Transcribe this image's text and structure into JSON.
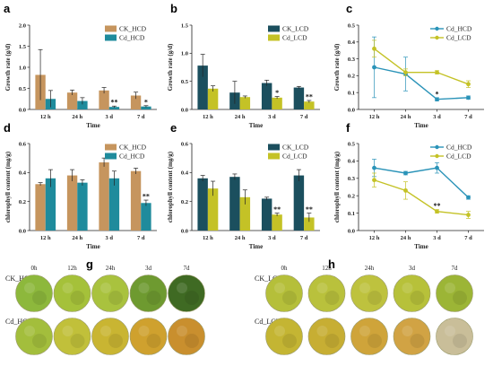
{
  "chart_data": [
    {
      "id": "a",
      "type": "bar",
      "panel_label": "a",
      "categories": [
        "12 h",
        "24 h",
        "3 d",
        "7 d"
      ],
      "xlabel": "Time",
      "ylabel": "Growth rate (g/d)",
      "ylim": [
        0,
        2.0
      ],
      "yticks": [
        "0.0",
        "0.5",
        "1.0",
        "1.5",
        "2.0"
      ],
      "legend_position": "top-right",
      "series": [
        {
          "name": "CK_HCD",
          "color": "#C6955E",
          "values": [
            0.82,
            0.4,
            0.45,
            0.33
          ],
          "errors": [
            0.6,
            0.06,
            0.07,
            0.08
          ]
        },
        {
          "name": "Cd_HCD",
          "color": "#1F8B9C",
          "values": [
            0.25,
            0.2,
            0.06,
            0.07
          ],
          "errors": [
            0.2,
            0.08,
            0.02,
            0.02
          ]
        }
      ],
      "significance": [
        {
          "category": "3 d",
          "series": "Cd_HCD",
          "label": "**"
        },
        {
          "category": "7 d",
          "series": "Cd_HCD",
          "label": "*"
        }
      ]
    },
    {
      "id": "b",
      "type": "bar",
      "panel_label": "b",
      "categories": [
        "12 h",
        "24 h",
        "3 d",
        "7 d"
      ],
      "xlabel": "Time",
      "ylabel": "Growth rate (g/d)",
      "ylim": [
        0,
        1.5
      ],
      "yticks": [
        "0.0",
        "0.5",
        "1.0",
        "1.5"
      ],
      "legend_position": "top-right",
      "series": [
        {
          "name": "CK_LCD",
          "color": "#1B4F5E",
          "values": [
            0.78,
            0.3,
            0.47,
            0.39
          ],
          "errors": [
            0.2,
            0.2,
            0.05,
            0.02
          ]
        },
        {
          "name": "Cd_LCD",
          "color": "#C4C226",
          "values": [
            0.37,
            0.22,
            0.21,
            0.14
          ],
          "errors": [
            0.05,
            0.02,
            0.02,
            0.02
          ]
        }
      ],
      "significance": [
        {
          "category": "3 d",
          "series": "Cd_LCD",
          "label": "*"
        },
        {
          "category": "7 d",
          "series": "Cd_LCD",
          "label": "**"
        }
      ]
    },
    {
      "id": "c",
      "type": "line",
      "panel_label": "c",
      "categories": [
        "12 h",
        "24 h",
        "3 d",
        "7 d"
      ],
      "xlabel": "Time",
      "ylabel": "Growth rate (g/d)",
      "ylim": [
        0,
        0.5
      ],
      "yticks": [
        "0.0",
        "0.1",
        "0.2",
        "0.3",
        "0.4",
        "0.5"
      ],
      "legend_position": "top-right",
      "series": [
        {
          "name": "Cd_HCD",
          "color": "#2A93B8",
          "values": [
            0.25,
            0.21,
            0.06,
            0.07
          ],
          "errors": [
            0.18,
            0.1,
            0.01,
            0.01
          ]
        },
        {
          "name": "Cd_LCD",
          "color": "#C4C226",
          "values": [
            0.36,
            0.22,
            0.22,
            0.15
          ],
          "errors": [
            0.05,
            0.02,
            0.01,
            0.02
          ]
        }
      ],
      "significance": [
        {
          "category": "3 d",
          "series": "Cd_HCD",
          "label": "*"
        }
      ]
    },
    {
      "id": "d",
      "type": "bar",
      "panel_label": "d",
      "categories": [
        "12 h",
        "24 h",
        "3 d",
        "7 d"
      ],
      "xlabel": "Time",
      "ylabel": "chlorophyll content (mg/g)",
      "ylim": [
        0,
        0.6
      ],
      "yticks": [
        "0.0",
        "0.2",
        "0.4",
        "0.6"
      ],
      "legend_position": "top-right",
      "series": [
        {
          "name": "CK_HCD",
          "color": "#C6955E",
          "values": [
            0.32,
            0.38,
            0.47,
            0.41
          ],
          "errors": [
            0.01,
            0.04,
            0.03,
            0.02
          ]
        },
        {
          "name": "Cd_HCD",
          "color": "#1F8B9C",
          "values": [
            0.36,
            0.33,
            0.36,
            0.19
          ],
          "errors": [
            0.06,
            0.02,
            0.05,
            0.02
          ]
        }
      ],
      "significance": [
        {
          "category": "7 d",
          "series": "Cd_HCD",
          "label": "**"
        }
      ]
    },
    {
      "id": "e",
      "type": "bar",
      "panel_label": "e",
      "categories": [
        "12 h",
        "24 h",
        "3 d",
        "7 d"
      ],
      "xlabel": "Time",
      "ylabel": "chlorophyll content (mg/g)",
      "ylim": [
        0,
        0.6
      ],
      "yticks": [
        "0.0",
        "0.2",
        "0.4",
        "0.6"
      ],
      "legend_position": "top-right",
      "series": [
        {
          "name": "CK_LCD",
          "color": "#1B4F5E",
          "values": [
            0.36,
            0.37,
            0.22,
            0.38
          ],
          "errors": [
            0.02,
            0.02,
            0.01,
            0.04
          ]
        },
        {
          "name": "Cd_LCD",
          "color": "#C4C226",
          "values": [
            0.29,
            0.23,
            0.11,
            0.09
          ],
          "errors": [
            0.05,
            0.05,
            0.01,
            0.03
          ]
        }
      ],
      "significance": [
        {
          "category": "3 d",
          "series": "Cd_LCD",
          "label": "**"
        },
        {
          "category": "7 d",
          "series": "Cd_LCD",
          "label": "**"
        }
      ]
    },
    {
      "id": "f",
      "type": "line",
      "panel_label": "f",
      "categories": [
        "12 h",
        "24 h",
        "3 d",
        "7 d"
      ],
      "xlabel": "Time",
      "ylabel": "chlorophyll content (mg/g)",
      "ylim": [
        0,
        0.5
      ],
      "yticks": [
        "0.0",
        "0.1",
        "0.2",
        "0.3",
        "0.4",
        "0.5"
      ],
      "legend_position": "top-right",
      "series": [
        {
          "name": "Cd_HCD",
          "color": "#2A93B8",
          "values": [
            0.36,
            0.33,
            0.36,
            0.19
          ],
          "errors": [
            0.05,
            0.01,
            0.03,
            0.01
          ]
        },
        {
          "name": "Cd_LCD",
          "color": "#C4C226",
          "values": [
            0.29,
            0.23,
            0.11,
            0.09
          ],
          "errors": [
            0.04,
            0.05,
            0.01,
            0.02
          ]
        }
      ],
      "significance": [
        {
          "category": "3 d",
          "series": "Cd_LCD",
          "label": "**"
        }
      ]
    }
  ],
  "photo_panels": [
    {
      "panel_label": "g",
      "time_headers": [
        "0h",
        "12h",
        "24h",
        "3d",
        "7d"
      ],
      "rows": [
        {
          "label": "CK_HCD",
          "dish_colors": [
            "#8DB83C",
            "#A5C13A",
            "#A9C23E",
            "#6E9A30",
            "#3F6A23"
          ]
        },
        {
          "label": "Cd_HCD",
          "dish_colors": [
            "#A3BE3C",
            "#C1C03A",
            "#C9B532",
            "#CFA12E",
            "#C98F2E"
          ]
        }
      ]
    },
    {
      "panel_label": "h",
      "time_headers": [
        "0h",
        "12h",
        "24h",
        "3d",
        "7d"
      ],
      "rows": [
        {
          "label": "CK_LCD",
          "dish_colors": [
            "#B5BF3A",
            "#B9C13C",
            "#BEC23E",
            "#B7C13A",
            "#9CB536"
          ]
        },
        {
          "label": "Cd_LCD",
          "dish_colors": [
            "#C4B533",
            "#C7AE33",
            "#CFA43A",
            "#D1A344",
            "#C9BE99"
          ]
        }
      ]
    }
  ]
}
